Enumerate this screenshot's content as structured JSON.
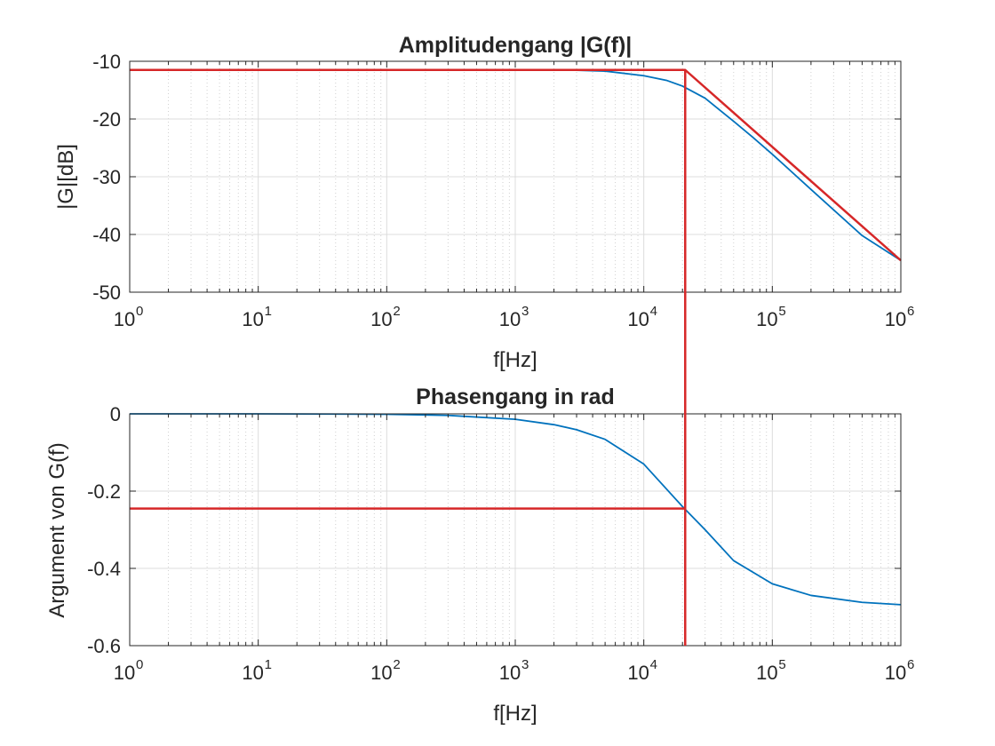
{
  "chart_data": [
    {
      "type": "line",
      "title": "Amplitudengang |G(f)|",
      "xlabel": "f[Hz]",
      "ylabel": "|G|[dB]",
      "xscale": "log",
      "xlim": [
        1,
        1000000
      ],
      "ylim": [
        -50,
        -10
      ],
      "xticks": [
        1,
        10,
        100,
        1000,
        10000,
        100000,
        1000000
      ],
      "xtick_labels": [
        {
          "base": "10",
          "exp": "0"
        },
        {
          "base": "10",
          "exp": "1"
        },
        {
          "base": "10",
          "exp": "2"
        },
        {
          "base": "10",
          "exp": "3"
        },
        {
          "base": "10",
          "exp": "4"
        },
        {
          "base": "10",
          "exp": "5"
        },
        {
          "base": "10",
          "exp": "6"
        }
      ],
      "yticks": [
        -10,
        -20,
        -30,
        -40,
        -50
      ],
      "ytick_labels": [
        "-10",
        "-20",
        "-30",
        "-40",
        "-50"
      ],
      "grid": true,
      "minor_grid": true,
      "series": [
        {
          "color": "#0072BD",
          "x": [
            1,
            10,
            100,
            1000,
            3000,
            5000,
            10000,
            15000,
            20000,
            30000,
            50000,
            70000,
            100000,
            200000,
            500000,
            1000000
          ],
          "y": [
            -11.5,
            -11.5,
            -11.5,
            -11.5,
            -11.55,
            -11.7,
            -12.5,
            -13.3,
            -14.3,
            -16.4,
            -20.4,
            -23.1,
            -26.1,
            -32.2,
            -40.2,
            -44.5
          ]
        },
        {
          "color": "#D62728",
          "x": [
            1,
            21000,
            1000000
          ],
          "y": [
            -11.5,
            -11.5,
            -44.5
          ]
        }
      ]
    },
    {
      "type": "line",
      "title": "Phasengang in rad",
      "xlabel": "f[Hz]",
      "ylabel": "Argument von G(f)",
      "xscale": "log",
      "xlim": [
        1,
        1000000
      ],
      "ylim": [
        -0.6,
        0
      ],
      "xticks": [
        1,
        10,
        100,
        1000,
        10000,
        100000,
        1000000
      ],
      "xtick_labels": [
        {
          "base": "10",
          "exp": "0"
        },
        {
          "base": "10",
          "exp": "1"
        },
        {
          "base": "10",
          "exp": "2"
        },
        {
          "base": "10",
          "exp": "3"
        },
        {
          "base": "10",
          "exp": "4"
        },
        {
          "base": "10",
          "exp": "5"
        },
        {
          "base": "10",
          "exp": "6"
        }
      ],
      "yticks": [
        0,
        -0.2,
        -0.4,
        -0.6
      ],
      "ytick_labels": [
        "0",
        "-0.2",
        "-0.4",
        "-0.6"
      ],
      "grid": true,
      "minor_grid": true,
      "series": [
        {
          "color": "#0072BD",
          "x": [
            1,
            10,
            100,
            300,
            1000,
            2000,
            3000,
            5000,
            10000,
            20000,
            30000,
            50000,
            100000,
            200000,
            500000,
            1000000
          ],
          "y": [
            0,
            0,
            -0.001,
            -0.004,
            -0.014,
            -0.028,
            -0.041,
            -0.066,
            -0.13,
            -0.24,
            -0.3,
            -0.38,
            -0.44,
            -0.47,
            -0.488,
            -0.494
          ]
        },
        {
          "color": "#D62728",
          "x": [
            1,
            21000
          ],
          "y": [
            -0.245,
            -0.245
          ]
        }
      ]
    }
  ],
  "marker_line": {
    "color": "#D62728",
    "x": 21000
  }
}
